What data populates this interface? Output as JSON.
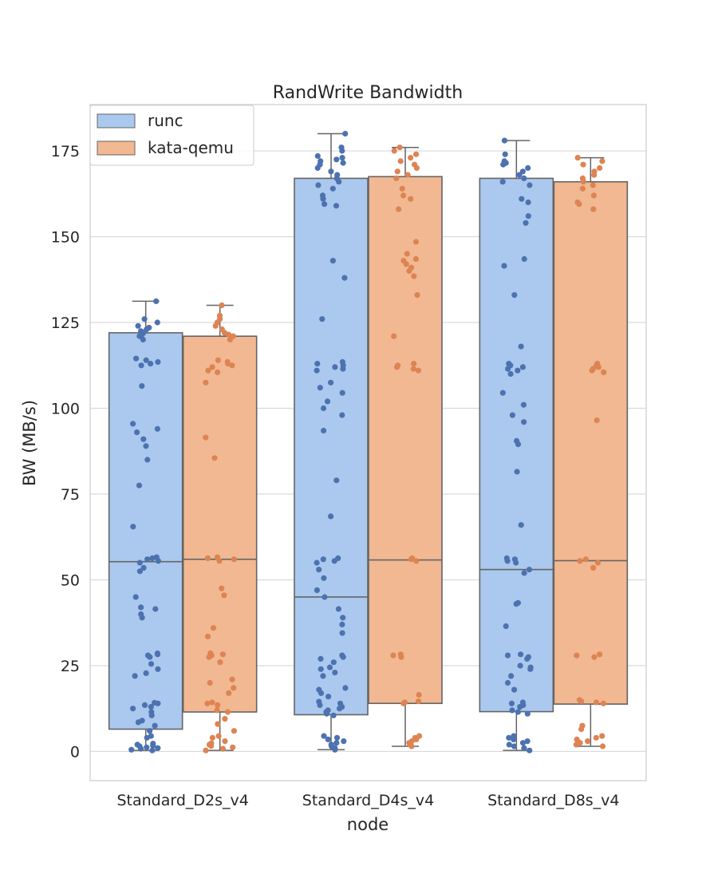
{
  "chart_data": {
    "type": "box",
    "title": "RandWrite Bandwidth",
    "xlabel": "node",
    "ylabel": "BW (MB/s)",
    "categories": [
      "Standard_D2s_v4",
      "Standard_D4s_v4",
      "Standard_D8s_v4"
    ],
    "yticks": [
      0,
      25,
      50,
      75,
      100,
      125,
      150,
      175
    ],
    "ylim": [
      -8.5,
      188.5
    ],
    "grid": true,
    "legend_position": "top-left",
    "series": [
      {
        "name": "runc",
        "box_color": "#abc9ee",
        "point_color": "#4c72b0",
        "boxes": [
          {
            "min": 0.3,
            "q1": 6.5,
            "median": 55.3,
            "q3": 122.0,
            "max": 131.2
          },
          {
            "min": 0.5,
            "q1": 10.7,
            "median": 45.0,
            "q3": 167.0,
            "max": 180.0
          },
          {
            "min": 0.3,
            "q1": 11.6,
            "median": 53.0,
            "q3": 167.0,
            "max": 178.0
          }
        ],
        "points": [
          [
            0.5,
            1,
            1.5,
            2,
            0.3,
            1.2,
            0.8,
            1.7,
            2.3,
            4,
            4.5,
            6,
            7.5,
            8.5,
            9,
            10.5,
            11.5,
            12.5,
            13,
            13.5,
            14,
            14.2,
            22,
            22.8,
            24,
            25.5,
            27.5,
            28,
            28.3,
            28.6,
            39,
            40,
            41.5,
            42,
            45,
            52.5,
            53.5,
            55,
            55.5,
            56,
            56.3,
            56.6,
            65.5,
            77.5,
            85,
            89,
            91,
            93,
            94,
            95.5,
            106.5,
            112.5,
            113,
            113.5,
            114,
            114.5,
            120,
            121,
            121.5,
            122,
            122.5,
            123,
            123.5,
            124,
            125,
            126,
            131.2
          ],
          [
            0.5,
            1,
            1.5,
            2,
            2.5,
            3,
            3.5,
            4,
            4.5,
            10.5,
            11,
            11.5,
            12,
            12.5,
            13,
            13.5,
            14,
            14.5,
            16,
            17,
            18,
            18.5,
            22,
            23,
            24,
            24.5,
            26,
            27,
            27.5,
            28,
            34.5,
            37,
            39,
            41.5,
            45,
            47,
            50.5,
            53,
            55,
            55.5,
            56,
            56.3,
            68.5,
            79,
            93.5,
            98,
            100,
            102,
            104.5,
            106,
            107.5,
            111,
            111.5,
            112,
            112.5,
            113,
            113.5,
            126,
            138,
            143,
            159,
            159.5,
            161,
            162,
            164,
            165,
            166,
            167,
            168,
            169,
            170,
            171,
            171.5,
            172,
            172.5,
            173,
            173.5,
            175,
            176,
            180
          ],
          [
            0.3,
            1,
            1.5,
            2,
            2.5,
            3,
            3.5,
            4,
            4.5,
            11,
            11.5,
            12,
            13,
            13.5,
            14,
            14.3,
            18,
            20,
            22,
            24,
            24.5,
            25,
            27,
            27.5,
            28,
            28.3,
            36.5,
            43,
            43.3,
            52,
            53,
            55,
            55.5,
            56,
            56.3,
            66,
            81.5,
            89.5,
            90.5,
            96,
            98,
            101,
            104.5,
            110,
            111,
            111.5,
            112,
            112.5,
            113,
            118,
            133,
            141.5,
            143.5,
            154,
            156,
            160,
            161,
            165,
            166,
            167,
            168,
            169,
            170,
            171,
            171.5,
            172,
            174,
            178
          ]
        ]
      },
      {
        "name": "kata-qemu",
        "box_color": "#f1b892",
        "point_color": "#dd8452",
        "boxes": [
          {
            "min": 0.3,
            "q1": 11.5,
            "median": 56.0,
            "q3": 121.0,
            "max": 130.0
          },
          {
            "min": 1.5,
            "q1": 14.0,
            "median": 55.8,
            "q3": 167.5,
            "max": 176.0
          },
          {
            "min": 1.5,
            "q1": 13.8,
            "median": 55.6,
            "q3": 166.0,
            "max": 173.0
          }
        ],
        "points": [
          [
            0.3,
            0.8,
            1.2,
            1.6,
            2,
            2.4,
            3,
            4,
            4.5,
            6,
            8,
            9.5,
            11.5,
            12,
            13.5,
            14,
            14.3,
            17,
            18.5,
            20,
            21,
            26,
            27.5,
            28,
            28.3,
            28.6,
            33.5,
            36,
            45.5,
            47.5,
            55.5,
            56,
            56.3,
            56.6,
            85.5,
            91.5,
            107.5,
            110.5,
            111,
            112,
            112.5,
            113,
            113.5,
            114,
            120,
            121,
            121.5,
            122,
            123,
            124,
            125,
            126,
            127,
            130
          ],
          [
            1.5,
            2,
            2.5,
            3,
            3.5,
            4,
            4.5,
            14,
            14.3,
            14.6,
            16.5,
            27.5,
            28,
            28.3,
            55.5,
            56,
            56.3,
            111,
            111.5,
            112,
            112.5,
            113,
            121,
            133,
            138.5,
            140,
            141,
            142,
            143,
            143.5,
            145,
            148.5,
            158,
            161,
            162,
            164,
            167,
            168,
            169,
            170,
            171,
            172,
            173,
            174,
            175,
            176
          ],
          [
            1.5,
            2,
            2.5,
            3,
            3.5,
            4,
            4.5,
            6.5,
            7.5,
            14,
            14.3,
            14.6,
            15,
            27.5,
            28,
            28.3,
            53.5,
            55,
            55.5,
            56,
            96.5,
            110.5,
            111,
            111.5,
            112,
            112.5,
            113,
            158,
            159.5,
            160,
            162,
            164,
            165,
            166,
            167,
            168,
            169,
            170,
            171,
            172,
            173
          ]
        ]
      }
    ]
  }
}
